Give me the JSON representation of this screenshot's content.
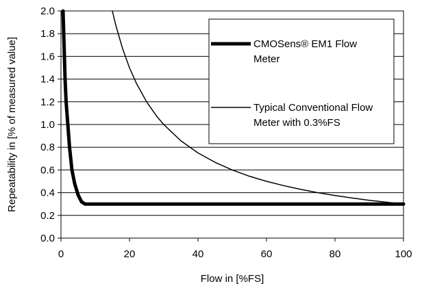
{
  "chart_data": {
    "type": "line",
    "xlabel": "Flow in [%FS]",
    "ylabel": "Repeatability in [% of measured value]",
    "xlim": [
      0,
      100
    ],
    "ylim": [
      0,
      2.0
    ],
    "x_ticks": [
      "0",
      "20",
      "40",
      "60",
      "80",
      "100"
    ],
    "y_ticks": [
      "0.0",
      "0.2",
      "0.4",
      "0.6",
      "0.8",
      "1.0",
      "1.2",
      "1.4",
      "1.6",
      "1.8",
      "2.0"
    ],
    "grid": "horizontal",
    "legend_position": "top-right",
    "series": [
      {
        "name": "CMOSens® EM1 Flow Meter",
        "color": "#000000",
        "style": "thick",
        "points": [
          [
            0.6,
            2.0
          ],
          [
            0.8,
            1.8
          ],
          [
            1.0,
            1.6
          ],
          [
            1.2,
            1.4
          ],
          [
            1.5,
            1.2
          ],
          [
            2.0,
            1.0
          ],
          [
            2.5,
            0.8
          ],
          [
            3.2,
            0.6
          ],
          [
            4.0,
            0.48
          ],
          [
            5.0,
            0.38
          ],
          [
            6.0,
            0.32
          ],
          [
            7.0,
            0.3
          ],
          [
            10,
            0.3
          ],
          [
            20,
            0.3
          ],
          [
            40,
            0.3
          ],
          [
            60,
            0.3
          ],
          [
            80,
            0.3
          ],
          [
            100,
            0.3
          ]
        ]
      },
      {
        "name": "Typical Conventional Flow Meter with 0.3%FS",
        "color": "#000000",
        "style": "thin",
        "points": [
          [
            15,
            2.0
          ],
          [
            16,
            1.875
          ],
          [
            18,
            1.667
          ],
          [
            20,
            1.5
          ],
          [
            22,
            1.364
          ],
          [
            25,
            1.2
          ],
          [
            28,
            1.071
          ],
          [
            30,
            1.0
          ],
          [
            35,
            0.857
          ],
          [
            40,
            0.75
          ],
          [
            45,
            0.667
          ],
          [
            50,
            0.6
          ],
          [
            55,
            0.545
          ],
          [
            60,
            0.5
          ],
          [
            65,
            0.462
          ],
          [
            70,
            0.429
          ],
          [
            75,
            0.4
          ],
          [
            80,
            0.375
          ],
          [
            85,
            0.353
          ],
          [
            90,
            0.333
          ],
          [
            95,
            0.316
          ],
          [
            100,
            0.3
          ]
        ]
      }
    ],
    "legend": {
      "entry1_line1": "CMOSens® EM1 Flow",
      "entry1_line2": "Meter",
      "entry2_line1": "Typical Conventional Flow",
      "entry2_line2": "Meter with 0.3%FS"
    }
  }
}
